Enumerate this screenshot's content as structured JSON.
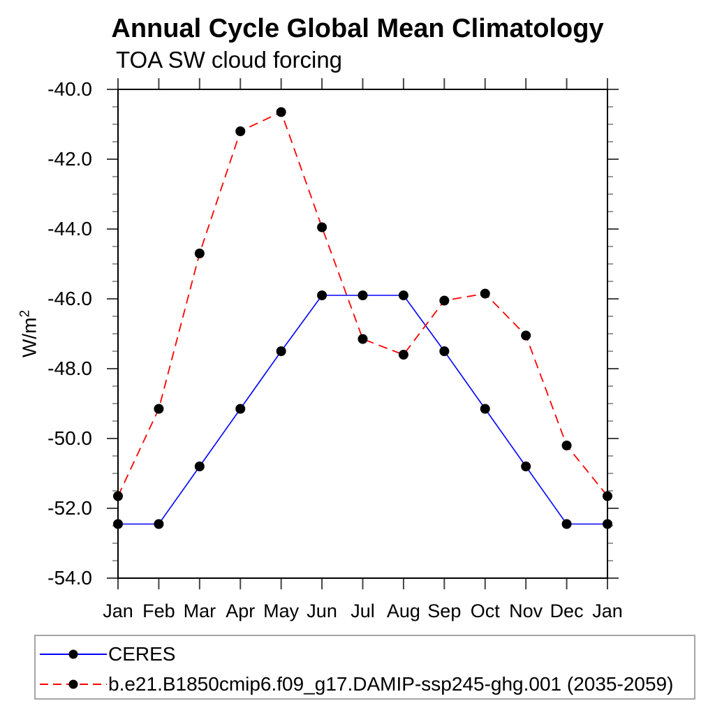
{
  "chart_data": {
    "type": "line",
    "title": "Annual Cycle Global Mean Climatology",
    "subtitle": "TOA SW cloud forcing",
    "xlabel": "",
    "ylabel": {
      "base": "W/m",
      "sup": "2"
    },
    "categories": [
      "Jan",
      "Feb",
      "Mar",
      "Apr",
      "May",
      "Jun",
      "Jul",
      "Aug",
      "Sep",
      "Oct",
      "Nov",
      "Dec",
      "Jan"
    ],
    "ylim": [
      -54.0,
      -40.0
    ],
    "y_major_tick_interval": 2.0,
    "y_minor_tick_interval": 0.5,
    "y_tick_labels": [
      "-40.0",
      "-42.0",
      "-44.0",
      "-46.0",
      "-48.0",
      "-50.0",
      "-52.0",
      "-54.0"
    ],
    "grid": false,
    "legend_position": "bottom",
    "axis_color": "#000000",
    "major_tick_color": "#444444",
    "minor_tick_color": "#999999",
    "series": [
      {
        "name": "CERES",
        "color": "#0000ff",
        "style": "solid",
        "marker": "circle",
        "marker_color": "#000000",
        "values": [
          -52.45,
          -52.45,
          -50.8,
          -49.15,
          -47.5,
          -45.9,
          -45.9,
          -45.9,
          -47.5,
          -49.15,
          -50.8,
          -52.45,
          -52.45
        ]
      },
      {
        "name": "b.e21.B1850cmip6.f09_g17.DAMIP-ssp245-ghg.001 (2035-2059)",
        "color": "#ff0000",
        "style": "dashed",
        "marker": "circle",
        "marker_color": "#000000",
        "values": [
          -51.65,
          -49.15,
          -44.7,
          -41.2,
          -40.65,
          -43.95,
          -47.15,
          -47.6,
          -46.05,
          -45.85,
          -47.05,
          -50.2,
          -51.65
        ]
      }
    ]
  }
}
